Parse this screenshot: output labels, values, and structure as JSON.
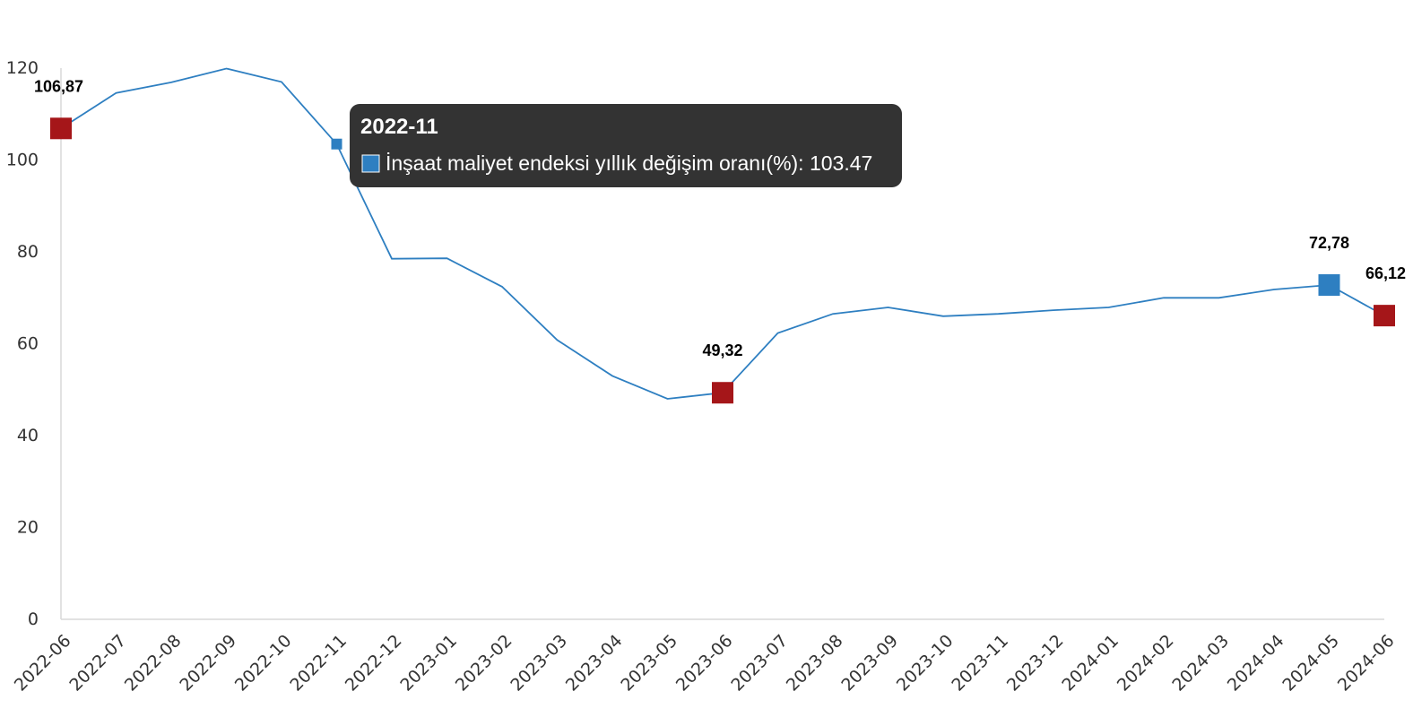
{
  "colors": {
    "line": "#2e7fc1",
    "highlight_red": "#a51619",
    "highlight_blue": "#2e7fc1",
    "tooltip_bg": "#333333",
    "axis": "#d9d9d9"
  },
  "chart_data": {
    "type": "line",
    "title": "",
    "xlabel": "",
    "ylabel": "",
    "ylim": [
      0,
      120
    ],
    "yticks": [
      0,
      20,
      40,
      60,
      80,
      100,
      120
    ],
    "grid": false,
    "legend": "none",
    "categories": [
      "2022-06",
      "2022-07",
      "2022-08",
      "2022-09",
      "2022-10",
      "2022-11",
      "2022-12",
      "2023-01",
      "2023-02",
      "2023-03",
      "2023-04",
      "2023-05",
      "2023-06",
      "2023-07",
      "2023-08",
      "2023-09",
      "2023-10",
      "2023-11",
      "2023-12",
      "2024-01",
      "2024-02",
      "2024-03",
      "2024-04",
      "2024-05",
      "2024-06"
    ],
    "series": [
      {
        "values": [
          106.87,
          114.6,
          116.9,
          119.9,
          117.0,
          103.47,
          78.5,
          78.6,
          72.4,
          60.8,
          53.0,
          48.0,
          49.32,
          62.3,
          66.5,
          67.9,
          66.0,
          66.5,
          67.3,
          67.9,
          70.0,
          70.0,
          71.8,
          72.78,
          66.12
        ]
      }
    ],
    "annotations": [
      {
        "category": "2022-06",
        "label": "106,87",
        "marker": "red"
      },
      {
        "category": "2023-06",
        "label": "49,32",
        "marker": "red"
      },
      {
        "category": "2024-05",
        "label": "72,78",
        "marker": "blue"
      },
      {
        "category": "2024-06",
        "label": "66,12",
        "marker": "red"
      }
    ],
    "tooltip": {
      "category": "2022-11",
      "title": "2022-11",
      "text": "İnşaat maliyet endeksi yıllık değişim oranı(%): 103.47"
    }
  }
}
